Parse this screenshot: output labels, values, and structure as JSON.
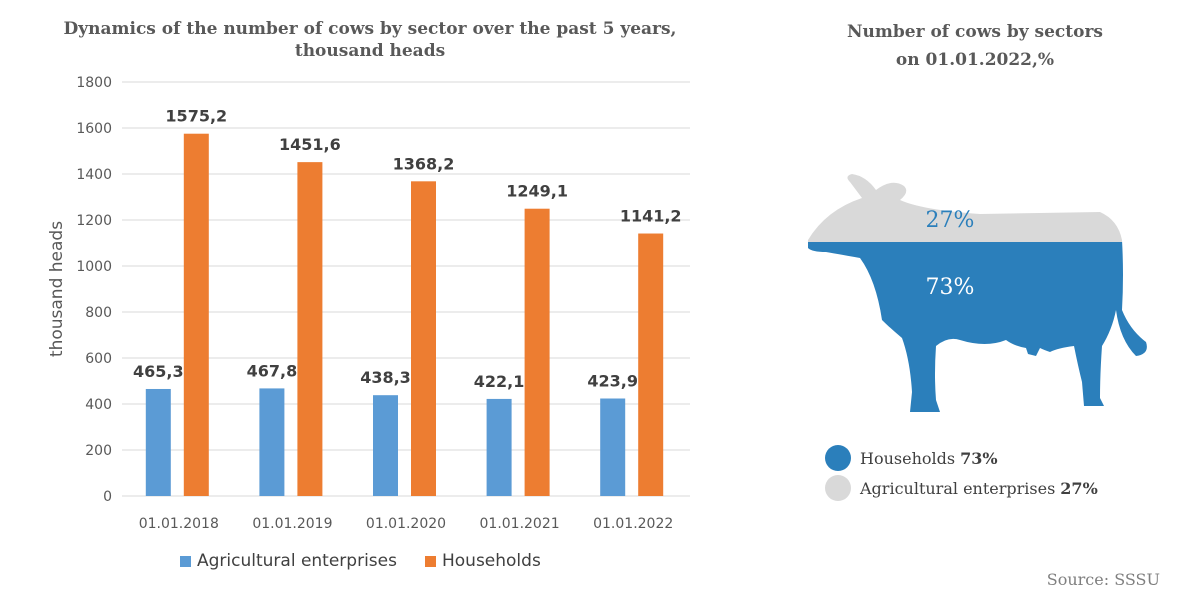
{
  "left_title": [
    "Dynamics of the number of cows by sector over the past 5 years,",
    "thousand heads"
  ],
  "right_title": [
    "Number of cows by sectors",
    "on 01.01.2022,%"
  ],
  "source": "Source: SSSU",
  "colors": {
    "agricultural": "#5b9bd5",
    "households": "#ed7d31",
    "cow_blue": "#2b7fbb",
    "cow_gray": "#d9d9d9",
    "grid": "#d9d9d9"
  },
  "chart_data": [
    {
      "type": "bar",
      "categories": [
        "01.01.2018",
        "01.01.2019",
        "01.01.2020",
        "01.01.2021",
        "01.01.2022"
      ],
      "series": [
        {
          "name": "Agricultural enterprises",
          "values": [
            465.3,
            467.8,
            438.3,
            422.1,
            423.9
          ],
          "labels": [
            "465,3",
            "467,8",
            "438,3",
            "422,1",
            "423,9"
          ]
        },
        {
          "name": "Households",
          "values": [
            1575.2,
            1451.6,
            1368.2,
            1249.1,
            1141.2
          ],
          "labels": [
            "1575,2",
            "1451,6",
            "1368,2",
            "1249,1",
            "1141,2"
          ]
        }
      ],
      "ylabel": "thousand heads",
      "xlabel": "",
      "ylim": [
        0,
        1800
      ],
      "yticks": [
        0,
        200,
        400,
        600,
        800,
        1000,
        1200,
        1400,
        1600,
        1800
      ],
      "grid": true,
      "legend": "bottom"
    },
    {
      "type": "pie",
      "categories": [
        "Households",
        "Agricultural enterprises"
      ],
      "values": [
        73,
        27
      ],
      "labels": [
        "73%",
        "27%"
      ],
      "legend_values": [
        "73%",
        "27%"
      ],
      "legend": "bottom-left"
    }
  ]
}
